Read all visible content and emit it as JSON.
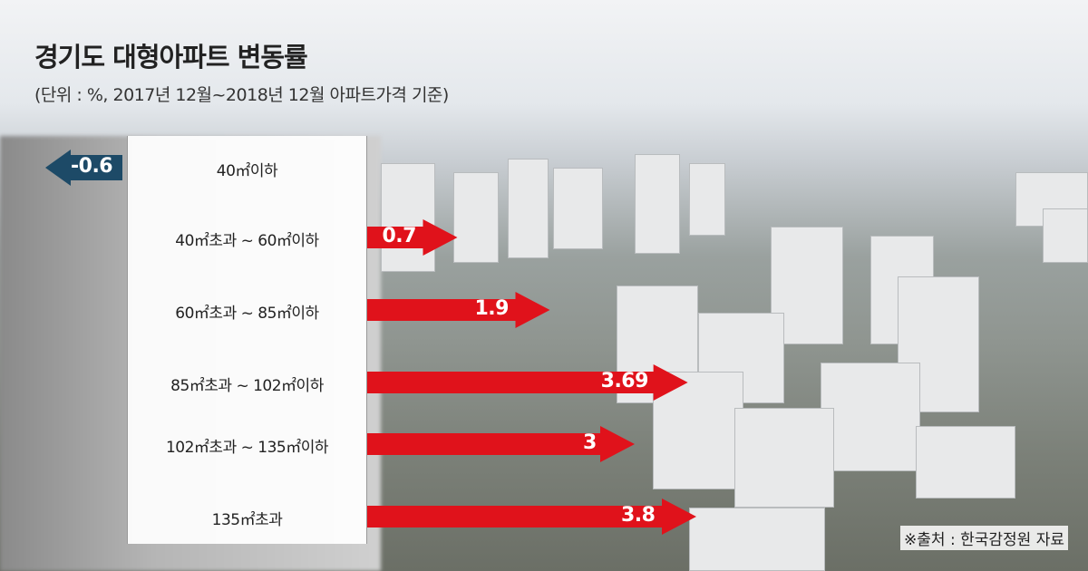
{
  "title": "경기도 대형아파트 변동률",
  "subtitle": "(단위 : %, 2017년 12월~2018년 12월 아파트가격 기준)",
  "source": "※출처 : 한국감정원 자료",
  "colors": {
    "positive": "#e0121b",
    "negative": "#1d4a67"
  },
  "chart_data": {
    "type": "bar",
    "orientation": "horizontal",
    "categories": [
      "40㎡이하",
      "40㎡초과 ~ 60㎡이하",
      "60㎡초과 ~ 85㎡이하",
      "85㎡초과 ~ 102㎡이하",
      "102㎡초과 ~ 135㎡이하",
      "135㎡초과"
    ],
    "values": [
      -0.6,
      0.7,
      1.9,
      3.69,
      3,
      3.8
    ],
    "value_labels": [
      "-0.6",
      "0.7",
      "1.9",
      "3.69",
      "3",
      "3.8"
    ],
    "title": "경기도 대형아파트 변동률",
    "unit": "%"
  }
}
